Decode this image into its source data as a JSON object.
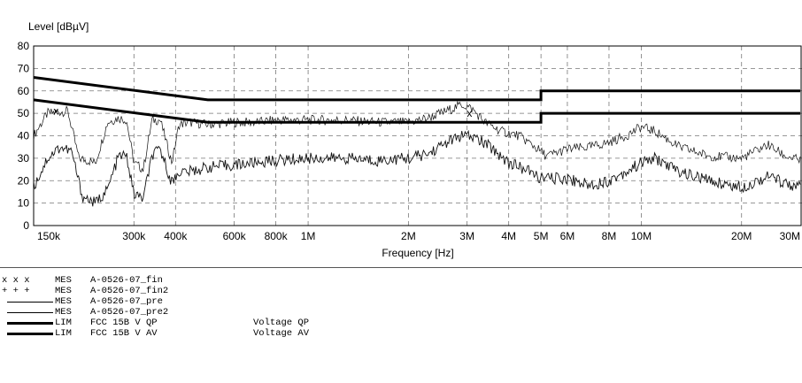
{
  "chart_data": {
    "type": "line",
    "ylabel": "Level [dBµV]",
    "xlabel": "Frequency [Hz]",
    "x_scale": "log",
    "xlim": [
      150000,
      30000000
    ],
    "ylim": [
      0,
      80
    ],
    "yticks": [
      0,
      10,
      20,
      30,
      40,
      50,
      60,
      70,
      80
    ],
    "xticks": [
      {
        "v": 150000,
        "label": "150k"
      },
      {
        "v": 300000,
        "label": "300k"
      },
      {
        "v": 400000,
        "label": "400k"
      },
      {
        "v": 600000,
        "label": "600k"
      },
      {
        "v": 800000,
        "label": "800k"
      },
      {
        "v": 1000000,
        "label": "1M"
      },
      {
        "v": 2000000,
        "label": "2M"
      },
      {
        "v": 3000000,
        "label": "3M"
      },
      {
        "v": 4000000,
        "label": "4M"
      },
      {
        "v": 5000000,
        "label": "5M"
      },
      {
        "v": 6000000,
        "label": "6M"
      },
      {
        "v": 8000000,
        "label": "8M"
      },
      {
        "v": 10000000,
        "label": "10M"
      },
      {
        "v": 20000000,
        "label": "20M"
      },
      {
        "v": 30000000,
        "label": "30M"
      }
    ],
    "grid": true,
    "series": [
      {
        "name": "A-0526-07_pre",
        "x": [
          150000,
          165000,
          190000,
          205000,
          230000,
          250000,
          270000,
          285000,
          300000,
          320000,
          340000,
          360000,
          390000,
          410000,
          440000,
          500000,
          600000,
          700000,
          800000,
          1000000,
          1300000,
          1600000,
          2000000,
          2300000,
          2600000,
          2900000,
          3100000,
          3400000,
          3800000,
          4300000,
          4700000,
          5200000,
          6000000,
          7000000,
          8000000,
          9000000,
          10000000,
          11000000,
          13000000,
          16000000,
          20000000,
          24000000,
          27000000,
          30000000
        ],
        "y": [
          40,
          50,
          51,
          30,
          28,
          46,
          48,
          47,
          28,
          25,
          47,
          47,
          28,
          45,
          46,
          45,
          46,
          46,
          47,
          47,
          47,
          46,
          46,
          48,
          51,
          54,
          52,
          46,
          42,
          40,
          36,
          31,
          34,
          35,
          37,
          40,
          44,
          42,
          35,
          31,
          30,
          36,
          31,
          29
        ]
      },
      {
        "name": "A-0526-07_pre2",
        "x": [
          150000,
          165000,
          180000,
          195000,
          210000,
          230000,
          250000,
          270000,
          285000,
          300000,
          320000,
          340000,
          360000,
          390000,
          410000,
          440000,
          500000,
          600000,
          800000,
          1000000,
          1300000,
          1600000,
          2000000,
          2300000,
          2600000,
          2900000,
          3200000,
          3600000,
          4000000,
          4500000,
          5000000,
          6000000,
          7000000,
          8000000,
          9000000,
          10000000,
          11000000,
          13000000,
          16000000,
          20000000,
          24000000,
          27000000,
          30000000
        ],
        "y": [
          17,
          30,
          35,
          33,
          13,
          10,
          16,
          31,
          31,
          14,
          12,
          31,
          34,
          19,
          24,
          24,
          26,
          27,
          29,
          30,
          30,
          29,
          30,
          32,
          37,
          40,
          39,
          34,
          28,
          25,
          21,
          21,
          18,
          20,
          24,
          28,
          30,
          24,
          20,
          17,
          22,
          19,
          17
        ]
      },
      {
        "name": "FCC 15B V QP",
        "x": [
          150000,
          500000,
          500000,
          5000000,
          5000000,
          30000000
        ],
        "y": [
          66,
          56,
          56,
          56,
          60,
          60
        ]
      },
      {
        "name": "FCC 15B V AV",
        "x": [
          150000,
          500000,
          500000,
          5000000,
          5000000,
          30000000
        ],
        "y": [
          56,
          46,
          46,
          46,
          50,
          50
        ]
      }
    ],
    "markers": [
      {
        "name": "A-0526-07_fin",
        "symbol": "x",
        "x": [
          175000,
          3050000
        ],
        "y": [
          51,
          50
        ]
      }
    ]
  },
  "legend": [
    {
      "mark": "x-markers",
      "type": "MES",
      "name": "A-0526-07_fin",
      "desc": ""
    },
    {
      "mark": "plus-markers",
      "type": "MES",
      "name": "A-0526-07_fin2",
      "desc": ""
    },
    {
      "mark": "thin-line",
      "type": "MES",
      "name": "A-0526-07_pre",
      "desc": ""
    },
    {
      "mark": "thin-line",
      "type": "MES",
      "name": "A-0526-07_pre2",
      "desc": ""
    },
    {
      "mark": "thick-line",
      "type": "LIM",
      "name": "FCC 15B V QP",
      "desc": "Voltage QP"
    },
    {
      "mark": "thick-line",
      "type": "LIM",
      "name": "FCC 15B V AV",
      "desc": "Voltage AV"
    }
  ]
}
